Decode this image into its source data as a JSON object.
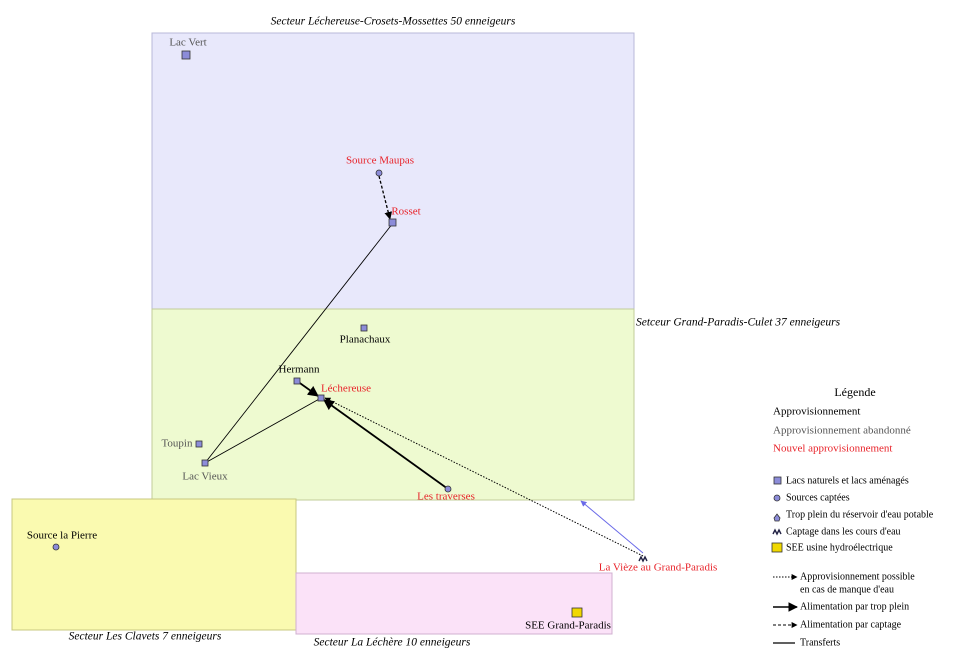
{
  "sectors": [
    {
      "title": "Secteur Léchereuse-Crosets-Mossettes 50 enneigeurs"
    },
    {
      "title": "Setceur Grand-Paradis-Culet 37 enneigeurs"
    },
    {
      "title": "Secteur Les Clavets 7 enneigeurs"
    },
    {
      "title": "Secteur La Léchère 10 enneigeurs"
    }
  ],
  "nodes": [
    {
      "label": "Lac Vert"
    },
    {
      "label": "Source Maupas"
    },
    {
      "label": "Rosset"
    },
    {
      "label": "Planachaux"
    },
    {
      "label": "Hermann"
    },
    {
      "label": "Léchereuse"
    },
    {
      "label": "Toupin"
    },
    {
      "label": "Lac Vieux"
    },
    {
      "label": "Les traverses"
    },
    {
      "label": "Source la Pierre"
    },
    {
      "label": "La Vièze au Grand-Paradis"
    },
    {
      "label": "SEE Grand-Paradis"
    }
  ],
  "legend": {
    "title": "Légende",
    "status": [
      "Approvisionnement",
      "Approvisionnement abandonné",
      "Nouvel approvisionnement"
    ],
    "symbols": [
      "Lacs naturels et lacs aménagés",
      "Sources captées",
      "Trop plein du réservoir d'eau potable",
      "Captage dans les cours d'eau",
      "SEE usine hydroélectrique"
    ],
    "links": [
      {
        "lines": [
          "Approvisionnement possible",
          "en cas de manque d'eau"
        ]
      },
      {
        "lines": [
          "Alimentation par trop plein"
        ]
      },
      {
        "lines": [
          "Alimentation par captage"
        ]
      },
      {
        "lines": [
          "Transferts"
        ]
      }
    ]
  }
}
